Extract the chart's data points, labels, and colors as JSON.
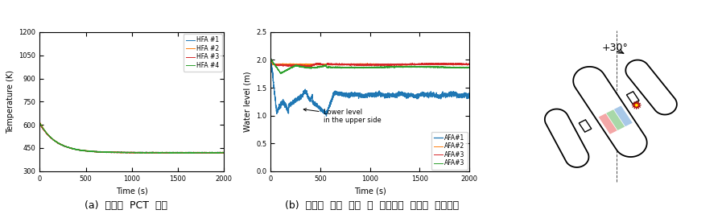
{
  "plot1": {
    "xlabel": "Time (s)",
    "ylabel": "Temperature (K)",
    "xlim": [
      0,
      2000
    ],
    "ylim": [
      300,
      1200
    ],
    "yticks": [
      300,
      450,
      600,
      750,
      900,
      1050,
      1200
    ],
    "xticks": [
      0,
      500,
      1000,
      1500,
      2000
    ],
    "legend": [
      "HFA #1",
      "HFA #2",
      "HFA #3",
      "HFA #4"
    ],
    "line_colors": [
      "#1f77b4",
      "#ff7f0e",
      "#d62728",
      "#2ca02c"
    ]
  },
  "plot2": {
    "xlabel": "Time (s)",
    "ylabel": "Water level (m)",
    "xlim": [
      0,
      2000
    ],
    "ylim": [
      0.0,
      2.5
    ],
    "yticks": [
      0.0,
      0.5,
      1.0,
      1.5,
      2.0,
      2.5
    ],
    "xticks": [
      0,
      500,
      1000,
      1500,
      2000
    ],
    "legend": [
      "AFA#1",
      "AFA#2",
      "AFA#3",
      "AFA#3"
    ],
    "line_colors": [
      "#1f77b4",
      "#ff7f0e",
      "#d62728",
      "#2ca02c"
    ],
    "annotation_text": "Lower level\nin the upper side"
  },
  "diagram": {
    "angle_label": "+30°"
  },
  "caption_a": "(a)  노심의  PCT  변화",
  "caption_b": "(b)  노심의  수위  변화  및  파단부와  노심의  위치관계",
  "background": "#ffffff"
}
